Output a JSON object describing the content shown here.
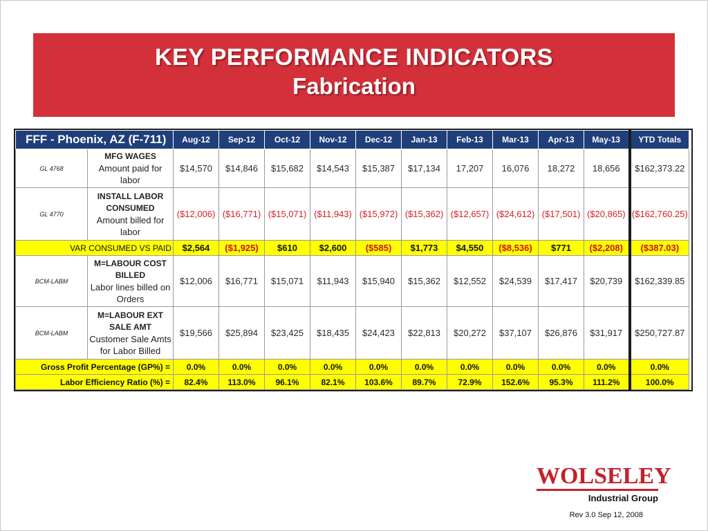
{
  "banner": {
    "title": "KEY PERFORMANCE INDICATORS",
    "subtitle": "Fabrication"
  },
  "table": {
    "corner_title": "FFF - Phoenix, AZ (F-711)",
    "months": [
      "Aug-12",
      "Sep-12",
      "Oct-12",
      "Nov-12",
      "Dec-12",
      "Jan-13",
      "Feb-13",
      "Mar-13",
      "Apr-13",
      "May-13"
    ],
    "ytd_header": "YTD Totals",
    "rows": [
      {
        "kind": "wage",
        "code": "GL 4768",
        "heading": "MFG WAGES",
        "description": "Amount paid for labor",
        "values": [
          "$14,570",
          "$14,846",
          "$15,682",
          "$14,543",
          "$15,387",
          "$17,134",
          "17,207",
          "16,076",
          "18,272",
          "18,656"
        ],
        "ytd": "$162,373.22"
      },
      {
        "kind": "install",
        "code": "GL 4770",
        "heading": "INSTALL LABOR CONSUMED",
        "description": "Amount billed for labor",
        "values": [
          "($12,006)",
          "($16,771)",
          "($15,071)",
          "($11,943)",
          "($15,972)",
          "($15,362)",
          "($12,657)",
          "($24,612)",
          "($17,501)",
          "($20,865)"
        ],
        "ytd": "($162,760.25)"
      },
      {
        "kind": "var",
        "label": "VAR CONSUMED VS PAID",
        "values": [
          "$2,564",
          "($1,925)",
          "$610",
          "$2,600",
          "($585)",
          "$1,773",
          "$4,550",
          "($8,536)",
          "$771",
          "($2,208)"
        ],
        "ytd": "($387.03)"
      },
      {
        "kind": "billed",
        "code": "BCM-LABM",
        "heading": "M=LABOUR COST BILLED",
        "description": "Labor lines billed on Orders",
        "values": [
          "$12,006",
          "$16,771",
          "$15,071",
          "$11,943",
          "$15,940",
          "$15,362",
          "$12,552",
          "$24,539",
          "$17,417",
          "$20,739"
        ],
        "ytd": "$162,339.85"
      },
      {
        "kind": "ext",
        "code": "BCM-LABM",
        "heading": "M=LABOUR EXT SALE AMT",
        "description": "Customer Sale Amts for Labor Billed",
        "values": [
          "$19,566",
          "$25,894",
          "$23,425",
          "$18,435",
          "$24,423",
          "$22,813",
          "$20,272",
          "$37,107",
          "$26,876",
          "$31,917"
        ],
        "ytd": "$250,727.87"
      },
      {
        "kind": "ratio",
        "label": "Gross Profit Percentage (GP%) =",
        "values": [
          "0.0%",
          "0.0%",
          "0.0%",
          "0.0%",
          "0.0%",
          "0.0%",
          "0.0%",
          "0.0%",
          "0.0%",
          "0.0%"
        ],
        "ytd": "0.0%"
      },
      {
        "kind": "ratio",
        "label": "Labor Efficiency Ratio (%)  =",
        "values": [
          "82.4%",
          "113.0%",
          "96.1%",
          "82.1%",
          "103.6%",
          "89.7%",
          "72.9%",
          "152.6%",
          "95.3%",
          "111.2%"
        ],
        "ytd": "100.0%"
      }
    ]
  },
  "logo": {
    "name": "WOLSELEY",
    "tagline": "Industrial Group"
  },
  "footer": {
    "revision": "Rev 3.0 Sep 12, 2008"
  },
  "colors": {
    "banner_red": "#d4303a",
    "header_navy": "#1f3f7a",
    "highlight_yellow": "#ffff00",
    "negative_red": "#d4202a",
    "logo_red": "#c4202a"
  }
}
